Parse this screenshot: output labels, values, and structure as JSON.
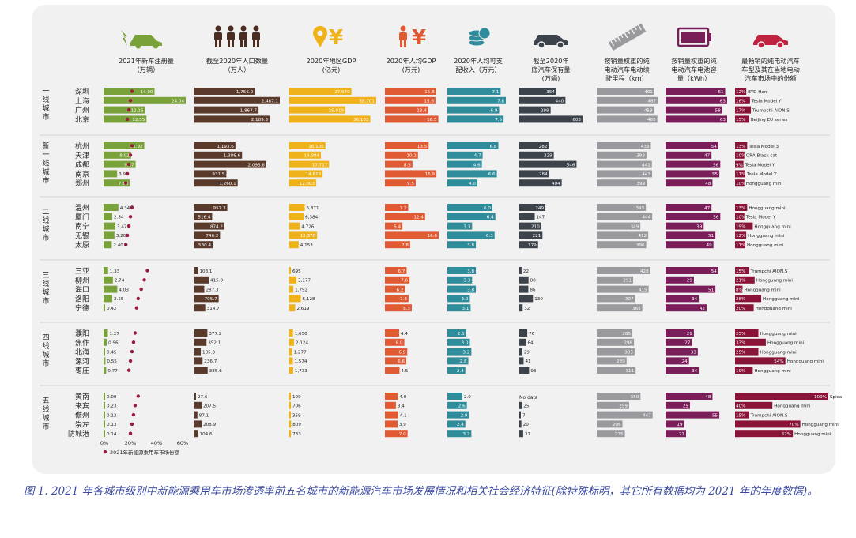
{
  "caption": "图 1. 2021 年各城市级别中新能源乘用车市场渗透率前五名城市的新能源汽车市场发展情况和相关社会经济特征(除特殊标明，其它所有数据均为 2021 年的年度数据)。",
  "chart_data": {
    "type": "bar",
    "colors": {
      "reg": "#7aa23a",
      "pop": "#5a3a2a",
      "gdp": "#f0b21a",
      "pcgdp": "#e05a33",
      "income": "#2f8c9a",
      "stock": "#3d434b",
      "range": "#9a9a9e",
      "battery": "#7a1e5a",
      "top": "#8a1338",
      "dot": "#9b1a3c"
    },
    "columns": [
      {
        "key": "reg",
        "title": "2021年新车注册量\n（万辆）",
        "icon": "car-charging-icon"
      },
      {
        "key": "pop",
        "title": "截至2020年人口数量\n（万人）",
        "icon": "people-icon"
      },
      {
        "key": "gdp",
        "title": "2020年地区GDP\n(亿元)",
        "icon": "location-yuan-icon"
      },
      {
        "key": "pcgdp",
        "title": "2020年人均GDP\n(万元)",
        "icon": "person-yuan-icon"
      },
      {
        "key": "income",
        "title": "2020年人均可支\n配收入（万元）",
        "icon": "coins-icon"
      },
      {
        "key": "stock",
        "title": "截至2020年\n底汽车保有量\n(万辆)",
        "icon": "car-icon"
      },
      {
        "key": "range",
        "title": "按销量权重的纯\n电动汽车电动续\n驶里程（km）",
        "icon": "ruler-icon"
      },
      {
        "key": "battery",
        "title": "按销量权重的纯\n电动汽车电池容\n量（kWh）",
        "icon": "battery-icon"
      },
      {
        "key": "top",
        "title": "最畅销的纯电动汽车\n车型及其在当地电动\n汽车市场中的份额",
        "icon": "ev-car-icon"
      }
    ],
    "share_axis": {
      "ticks": [
        "0%",
        "20%",
        "40%",
        "60%"
      ],
      "legend": "2021年新能源乘用车市场份额"
    },
    "tiers": [
      {
        "label": "一线城市",
        "cities": [
          {
            "name": "深圳",
            "reg": "14.90",
            "pop": "1,756.0",
            "gdp": "27,670",
            "pcgdp": "15.8",
            "income": "7.1",
            "stock": "354",
            "range": "461",
            "battery": "61",
            "top": "12%  BYD Han",
            "topPct": 12,
            "share": 20
          },
          {
            "name": "上海",
            "reg": "24.04",
            "pop": "2,487.1",
            "gdp": "38,701",
            "pcgdp": "15.6",
            "income": "7.8",
            "stock": "440",
            "range": "487",
            "battery": "63",
            "top": "16%  Tesla Model Y",
            "topPct": 16,
            "share": 19
          },
          {
            "name": "广州",
            "reg": "12.15",
            "pop": "1,867.7",
            "gdp": "25,019",
            "pcgdp": "13.4",
            "income": "6.9",
            "stock": "299",
            "range": "459",
            "battery": "58",
            "top": "17%  Trumpchi AION.S",
            "topPct": 17,
            "share": 18
          },
          {
            "name": "北京",
            "reg": "12.55",
            "pop": "2,189.3",
            "gdp": "36,103",
            "pcgdp": "16.5",
            "income": "7.5",
            "stock": "603",
            "range": "485",
            "battery": "63",
            "top": "15%  Beijing EU series",
            "topPct": 15,
            "share": 17
          }
        ]
      },
      {
        "label": "新一线城市",
        "cities": [
          {
            "name": "杭州",
            "reg": "11.92",
            "pop": "1,193.6",
            "gdp": "16,106",
            "pcgdp": "13.5",
            "income": "6.8",
            "stock": "282",
            "range": "433",
            "battery": "54",
            "top": "13%  Tesla Model 3",
            "topPct": 13,
            "share": 20
          },
          {
            "name": "天津",
            "reg": "8.02",
            "pop": "1,386.6",
            "gdp": "14,084",
            "pcgdp": "10.2",
            "income": "4.7",
            "stock": "329",
            "range": "398",
            "battery": "47",
            "top": "10%  ORA Black cat",
            "topPct": 10,
            "share": 19
          },
          {
            "name": "成都",
            "reg": "9.37",
            "pop": "2,093.8",
            "gdp": "17,717",
            "pcgdp": "8.5",
            "income": "4.6",
            "stock": "546",
            "range": "441",
            "battery": "56",
            "top": "9%  Tesla Model Y",
            "topPct": 9,
            "share": 18
          },
          {
            "name": "南京",
            "reg": "3.97",
            "pop": "931.5",
            "gdp": "14,818",
            "pcgdp": "15.9",
            "income": "6.6",
            "stock": "284",
            "range": "443",
            "battery": "55",
            "top": "11%  Tesla Model Y",
            "topPct": 11,
            "share": 17
          },
          {
            "name": "郑州",
            "reg": "7.69",
            "pop": "1,260.1",
            "gdp": "12,003",
            "pcgdp": "9.5",
            "income": "4.0",
            "stock": "404",
            "range": "399",
            "battery": "48",
            "top": "10%  Hongguang mini",
            "topPct": 10,
            "share": 16
          }
        ]
      },
      {
        "label": "二线城市",
        "cities": [
          {
            "name": "温州",
            "reg": "4.34",
            "pop": "957.3",
            "gdp": "6,871",
            "pcgdp": "7.2",
            "income": "6.0",
            "stock": "249",
            "range": "393",
            "battery": "47",
            "top": "13%  Hongguang mini",
            "topPct": 13,
            "share": 20
          },
          {
            "name": "厦门",
            "reg": "2.54",
            "pop": "516.4",
            "gdp": "6,384",
            "pcgdp": "12.4",
            "income": "6.4",
            "stock": "147",
            "range": "444",
            "battery": "56",
            "top": "10%  Tesla Model Y",
            "topPct": 10,
            "share": 19
          },
          {
            "name": "南宁",
            "reg": "3.47",
            "pop": "874.2",
            "gdp": "4,726",
            "pcgdp": "5.4",
            "income": "3.3",
            "stock": "210",
            "range": "349",
            "battery": "39",
            "top": "19%  Hongguang mini",
            "topPct": 19,
            "share": 18
          },
          {
            "name": "无锡",
            "reg": "3.20",
            "pop": "746.2",
            "gdp": "12,370",
            "pcgdp": "16.6",
            "income": "6.3",
            "stock": "221",
            "range": "412",
            "battery": "51",
            "top": "12%  Hongguang mini",
            "topPct": 12,
            "share": 17
          },
          {
            "name": "太原",
            "reg": "2.40",
            "pop": "530.4",
            "gdp": "4,153",
            "pcgdp": "7.8",
            "income": "3.8",
            "stock": "179",
            "range": "396",
            "battery": "49",
            "top": "11%  Hongguang mini",
            "topPct": 11,
            "share": 16
          }
        ]
      },
      {
        "label": "三线城市",
        "cities": [
          {
            "name": "三亚",
            "reg": "1.33",
            "pop": "103.1",
            "gdp": "695",
            "pcgdp": "6.7",
            "income": "3.8",
            "stock": "22",
            "range": "428",
            "battery": "54",
            "top": "15%  Trumpchi AION.S",
            "topPct": 15,
            "share": 30
          },
          {
            "name": "柳州",
            "reg": "2.74",
            "pop": "415.8",
            "gdp": "3,177",
            "pcgdp": "7.6",
            "income": "3.3",
            "stock": "88",
            "range": "291",
            "battery": "29",
            "top": "21%  Hongguang mini",
            "topPct": 21,
            "share": 28
          },
          {
            "name": "海口",
            "reg": "4.03",
            "pop": "287.3",
            "gdp": "1,792",
            "pcgdp": "6.2",
            "income": "3.8",
            "stock": "86",
            "range": "415",
            "battery": "51",
            "top": "8%  Hongguang mini",
            "topPct": 8,
            "share": 26
          },
          {
            "name": "洛阳",
            "reg": "2.55",
            "pop": "705.7",
            "gdp": "5,128",
            "pcgdp": "7.3",
            "income": "3.0",
            "stock": "130",
            "range": "307",
            "battery": "34",
            "top": "28%  Hongguang mini",
            "topPct": 28,
            "share": 24
          },
          {
            "name": "宁德",
            "reg": "0.42",
            "pop": "314.7",
            "gdp": "2,619",
            "pcgdp": "8.3",
            "income": "3.1",
            "stock": "32",
            "range": "365",
            "battery": "42",
            "top": "20%  Hongguang mini",
            "topPct": 20,
            "share": 23
          }
        ]
      },
      {
        "label": "四线城市",
        "cities": [
          {
            "name": "濮阳",
            "reg": "1.27",
            "pop": "377.2",
            "gdp": "1,650",
            "pcgdp": "4.4",
            "income": "2.5",
            "stock": "76",
            "range": "285",
            "battery": "29",
            "top": "25%  Hongguang mini",
            "topPct": 25,
            "share": 22
          },
          {
            "name": "焦作",
            "reg": "0.96",
            "pop": "352.1",
            "gdp": "2,124",
            "pcgdp": "6.0",
            "income": "3.0",
            "stock": "64",
            "range": "298",
            "battery": "27",
            "top": "33%  Hongguang mini",
            "topPct": 33,
            "share": 21
          },
          {
            "name": "北海",
            "reg": "0.45",
            "pop": "185.3",
            "gdp": "1,277",
            "pcgdp": "6.9",
            "income": "3.2",
            "stock": "29",
            "range": "303",
            "battery": "33",
            "top": "25%  Hongguang mini",
            "topPct": 25,
            "share": 20
          },
          {
            "name": "漯河",
            "reg": "0.55",
            "pop": "236.7",
            "gdp": "1,574",
            "pcgdp": "6.6",
            "income": "2.8",
            "stock": "41",
            "range": "239",
            "battery": "24",
            "top": "54%  Hongguang mini",
            "topPct": 54,
            "share": 19
          },
          {
            "name": "枣庄",
            "reg": "0.77",
            "pop": "385.6",
            "gdp": "1,733",
            "pcgdp": "4.5",
            "income": "2.4",
            "stock": "93",
            "range": "311",
            "battery": "34",
            "top": "19%  Hongguang mini",
            "topPct": 19,
            "share": 18
          }
        ]
      },
      {
        "label": "五线城市",
        "cities": [
          {
            "name": "黄南",
            "reg": "0.00",
            "pop": "27.6",
            "gdp": "109",
            "pcgdp": "4.0",
            "income": "2.0",
            "stock": "No data",
            "range": "350",
            "battery": "48",
            "top": "100%  Spica",
            "topPct": 100,
            "share": 24
          },
          {
            "name": "来宾",
            "reg": "0.23",
            "pop": "207.5",
            "gdp": "706",
            "pcgdp": "3.4",
            "income": "2.6",
            "stock": "25",
            "range": "259",
            "battery": "25",
            "top": "40%  Hongguang mini",
            "topPct": 40,
            "share": 22
          },
          {
            "name": "儋州",
            "reg": "0.12",
            "pop": "87.1",
            "gdp": "359",
            "pcgdp": "4.1",
            "income": "2.9",
            "stock": "7",
            "range": "447",
            "battery": "55",
            "top": "15%  Trumpchi AION.S",
            "topPct": 15,
            "share": 21
          },
          {
            "name": "崇左",
            "reg": "0.13",
            "pop": "208.9",
            "gdp": "809",
            "pcgdp": "3.9",
            "income": "2.4",
            "stock": "20",
            "range": "206",
            "battery": "19",
            "top": "70%  Hongguang mini",
            "topPct": 70,
            "share": 20
          },
          {
            "name": "防城港",
            "reg": "0.14",
            "pop": "104.6",
            "gdp": "733",
            "pcgdp": "7.0",
            "income": "3.2",
            "stock": "37",
            "range": "225",
            "battery": "21",
            "top": "62%  Hongguang mini",
            "topPct": 62,
            "share": 19
          }
        ]
      }
    ]
  }
}
